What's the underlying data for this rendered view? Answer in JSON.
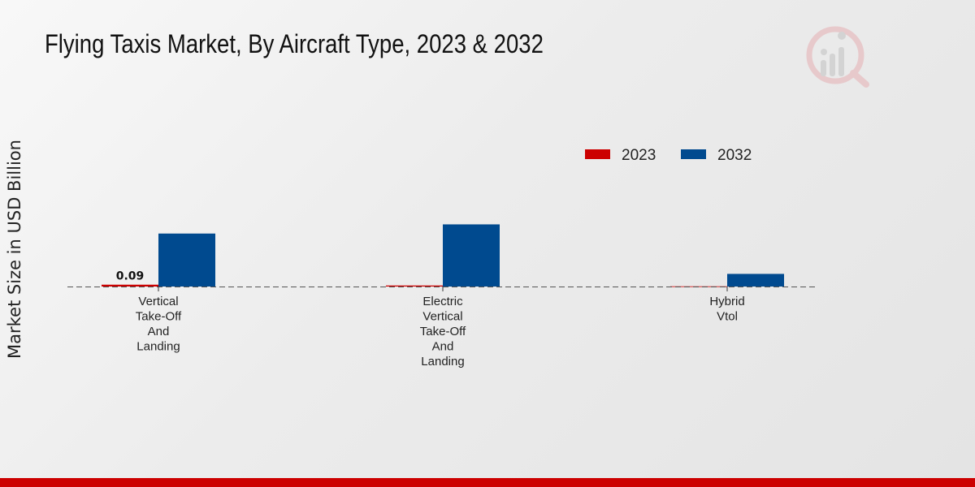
{
  "chart_data": {
    "type": "bar",
    "title": "Flying Taxis Market, By Aircraft Type, 2023 & 2032",
    "xlabel": "",
    "ylabel": "Market Size in USD Billion",
    "categories": [
      [
        "Vertical",
        "Take-Off",
        "And",
        "Landing"
      ],
      [
        "Electric",
        "Vertical",
        "Take-Off",
        "And",
        "Landing"
      ],
      [
        "Hybrid",
        "Vtol"
      ]
    ],
    "series": [
      {
        "name": "2023",
        "color": "#cc0000",
        "values": [
          0.09,
          0.05,
          0.01
        ]
      },
      {
        "name": "2032",
        "color": "#004a8f",
        "values": [
          2.6,
          3.05,
          0.62
        ]
      }
    ],
    "data_labels": [
      {
        "series": 0,
        "index": 0,
        "text": "0.09"
      }
    ],
    "ylim": [
      0,
      8
    ],
    "grid": false,
    "legend_position": "top-right"
  }
}
